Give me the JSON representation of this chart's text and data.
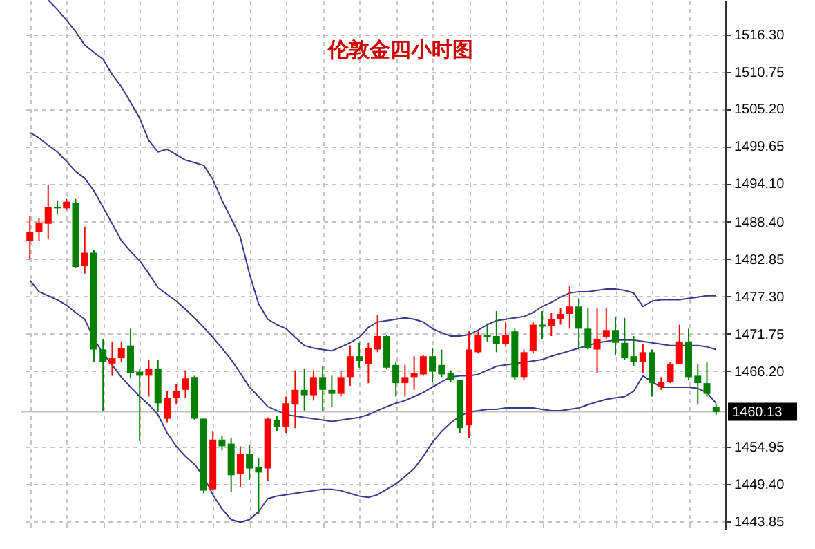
{
  "chart_data": {
    "type": "candlestick",
    "title": "伦敦金四小时图",
    "categories": [
      null,
      null,
      null,
      null,
      null,
      null,
      null,
      null,
      null,
      null,
      null,
      null,
      null,
      null,
      null,
      null,
      null,
      null,
      null,
      null,
      null,
      null,
      null,
      null,
      null,
      null,
      null,
      null,
      null,
      null,
      null,
      null,
      null,
      null,
      null,
      null,
      null,
      null,
      null,
      null,
      null,
      null,
      null,
      null,
      null,
      null,
      null,
      null,
      null,
      null,
      null,
      null,
      null,
      null,
      null,
      null,
      null,
      null,
      null,
      null,
      null,
      null,
      null,
      null,
      null,
      null,
      null,
      null,
      null,
      null,
      null,
      null,
      null,
      null,
      null,
      null
    ],
    "ohlc": [
      [
        1485.6,
        1489.3,
        1482.8,
        1486.9
      ],
      [
        1486.9,
        1488.9,
        1485.6,
        1488.3
      ],
      [
        1488.1,
        1493.9,
        1485.8,
        1490.6
      ],
      [
        1490.6,
        1491.6,
        1489.6,
        1490.4
      ],
      [
        1490.4,
        1491.8,
        1490.2,
        1491.4
      ],
      [
        1491.2,
        1491.8,
        1481.5,
        1481.7
      ],
      [
        1481.9,
        1487.7,
        1480.7,
        1483.8
      ],
      [
        1483.8,
        1484.2,
        1467.5,
        1469.4
      ],
      [
        1469.4,
        1471.0,
        1460.3,
        1467.5
      ],
      [
        1467.3,
        1470.6,
        1465.5,
        1468.1
      ],
      [
        1468.1,
        1470.6,
        1467.5,
        1469.6
      ],
      [
        1470.0,
        1472.5,
        1465.1,
        1465.9
      ],
      [
        1466.1,
        1466.5,
        1455.8,
        1465.5
      ],
      [
        1465.5,
        1467.9,
        1462.4,
        1466.5
      ],
      [
        1466.5,
        1467.9,
        1460.1,
        1461.4
      ],
      [
        1459.1,
        1463.2,
        1458.5,
        1462.2
      ],
      [
        1462.2,
        1464.2,
        1461.2,
        1463.2
      ],
      [
        1463.4,
        1466.3,
        1462.2,
        1465.1
      ],
      [
        1465.3,
        1465.5,
        1458.9,
        1459.1
      ],
      [
        1459.1,
        1459.1,
        1448.0,
        1448.4
      ],
      [
        1448.6,
        1457.2,
        1448.4,
        1456.0
      ],
      [
        1456.0,
        1456.6,
        1454.4,
        1455.0
      ],
      [
        1455.4,
        1456.2,
        1448.2,
        1450.7
      ],
      [
        1450.9,
        1455.0,
        1449.0,
        1453.9
      ],
      [
        1453.9,
        1455.2,
        1450.0,
        1451.7
      ],
      [
        1451.9,
        1453.3,
        1444.9,
        1451.1
      ],
      [
        1451.7,
        1459.3,
        1449.8,
        1459.1
      ],
      [
        1458.9,
        1459.5,
        1457.2,
        1457.9
      ],
      [
        1457.9,
        1462.4,
        1457.0,
        1461.4
      ],
      [
        1461.2,
        1466.3,
        1457.7,
        1463.4
      ],
      [
        1463.4,
        1466.5,
        1460.3,
        1462.6
      ],
      [
        1462.6,
        1466.3,
        1461.8,
        1465.3
      ],
      [
        1465.3,
        1466.9,
        1460.3,
        1463.4
      ],
      [
        1463.4,
        1465.5,
        1460.9,
        1462.8
      ],
      [
        1462.8,
        1466.3,
        1462.4,
        1465.3
      ],
      [
        1465.3,
        1470.0,
        1464.0,
        1468.4
      ],
      [
        1468.4,
        1470.4,
        1466.7,
        1467.7
      ],
      [
        1467.3,
        1470.4,
        1464.4,
        1469.6
      ],
      [
        1469.4,
        1474.5,
        1469.0,
        1471.4
      ],
      [
        1471.4,
        1471.6,
        1466.5,
        1466.7
      ],
      [
        1467.1,
        1467.5,
        1462.4,
        1464.4
      ],
      [
        1464.4,
        1467.1,
        1462.4,
        1465.3
      ],
      [
        1465.3,
        1468.4,
        1463.4,
        1465.9
      ],
      [
        1465.7,
        1468.6,
        1465.5,
        1468.4
      ],
      [
        1468.4,
        1469.6,
        1464.6,
        1466.1
      ],
      [
        1467.1,
        1469.4,
        1465.3,
        1465.7
      ],
      [
        1465.9,
        1466.3,
        1464.6,
        1464.9
      ],
      [
        1464.9,
        1464.9,
        1457.0,
        1457.7
      ],
      [
        1458.1,
        1472.1,
        1456.2,
        1469.4
      ],
      [
        1469.0,
        1472.1,
        1468.8,
        1471.6
      ],
      [
        1471.6,
        1473.3,
        1470.6,
        1471.3
      ],
      [
        1471.4,
        1475.1,
        1469.0,
        1470.2
      ],
      [
        1470.2,
        1473.5,
        1469.8,
        1471.6
      ],
      [
        1472.1,
        1472.5,
        1464.9,
        1465.3
      ],
      [
        1465.3,
        1469.4,
        1464.9,
        1469.0
      ],
      [
        1469.2,
        1473.5,
        1468.8,
        1473.1
      ],
      [
        1473.1,
        1475.1,
        1471.0,
        1472.8
      ],
      [
        1472.9,
        1474.9,
        1471.4,
        1473.9
      ],
      [
        1473.9,
        1475.6,
        1473.1,
        1474.7
      ],
      [
        1474.7,
        1478.8,
        1472.5,
        1475.8
      ],
      [
        1475.8,
        1477.0,
        1469.4,
        1472.5
      ],
      [
        1472.5,
        1475.6,
        1469.4,
        1469.6
      ],
      [
        1469.4,
        1475.6,
        1465.9,
        1471.0
      ],
      [
        1471.2,
        1475.6,
        1471.0,
        1472.3
      ],
      [
        1472.3,
        1474.3,
        1468.6,
        1470.4
      ],
      [
        1470.4,
        1474.1,
        1467.9,
        1468.1
      ],
      [
        1468.4,
        1471.4,
        1466.9,
        1467.5
      ],
      [
        1467.5,
        1470.2,
        1465.9,
        1469.0
      ],
      [
        1469.0,
        1469.4,
        1462.4,
        1464.4
      ],
      [
        1463.8,
        1465.3,
        1463.4,
        1464.6
      ],
      [
        1464.6,
        1467.5,
        1464.4,
        1467.3
      ],
      [
        1467.3,
        1473.1,
        1467.3,
        1470.6
      ],
      [
        1470.6,
        1472.5,
        1464.9,
        1465.3
      ],
      [
        1465.5,
        1467.3,
        1461.2,
        1464.4
      ],
      [
        1464.4,
        1467.5,
        1462.4,
        1462.8
      ],
      [
        1460.9,
        1461.2,
        1459.7,
        1460.1
      ]
    ],
    "colors": [
      "#ff0000",
      "#ff0000",
      "#ff0000",
      "#008000",
      "#ff0000",
      "#008000",
      "#ff0000",
      "#008000",
      "#008000",
      "#ff0000",
      "#ff0000",
      "#008000",
      "#008000",
      "#ff0000",
      "#008000",
      "#ff0000",
      "#ff0000",
      "#ff0000",
      "#008000",
      "#008000",
      "#ff0000",
      "#008000",
      "#008000",
      "#ff0000",
      "#008000",
      "#008000",
      "#ff0000",
      "#008000",
      "#ff0000",
      "#ff0000",
      "#008000",
      "#ff0000",
      "#008000",
      "#008000",
      "#ff0000",
      "#ff0000",
      "#008000",
      "#ff0000",
      "#ff0000",
      "#008000",
      "#008000",
      "#ff0000",
      "#ff0000",
      "#ff0000",
      "#008000",
      "#008000",
      "#008000",
      "#008000",
      "#ff0000",
      "#ff0000",
      "#008000",
      "#008000",
      "#ff0000",
      "#008000",
      "#ff0000",
      "#ff0000",
      "#008000",
      "#ff0000",
      "#ff0000",
      "#ff0000",
      "#008000",
      "#008000",
      "#ff0000",
      "#ff0000",
      "#008000",
      "#008000",
      "#008000",
      "#ff0000",
      "#008000",
      "#ff0000",
      "#ff0000",
      "#ff0000",
      "#008000",
      "#008000",
      "#008000",
      "#008000"
    ],
    "series": [
      {
        "type": "line",
        "color": "#3a3a8c",
        "values": [
          null,
          null,
          1521.4,
          1520.0,
          1518.4,
          1516.7,
          1514.7,
          1513.6,
          1512.6,
          1510.3,
          1508.5,
          1506.2,
          1503.8,
          1500.5,
          1498.8,
          1499.2,
          1498.4,
          1497.6,
          1497.2,
          1496.8,
          1494.7,
          1491.6,
          1488.9,
          1486.1,
          1480.7,
          1476.2,
          1473.9,
          1473.1,
          1472.5,
          1471.2,
          1470.0,
          1469.6,
          1469.4,
          1469.2,
          1469.8,
          1470.4,
          1471.2,
          1472.7,
          1473.5,
          1473.7,
          1473.9,
          1474.1,
          1473.9,
          1473.5,
          1472.5,
          1471.9,
          1471.4,
          1471.4,
          1471.6,
          1472.3,
          1473.1,
          1473.7,
          1473.9,
          1474.1,
          1474.3,
          1474.9,
          1475.8,
          1476.4,
          1477.2,
          1477.8,
          1478.0,
          1478.0,
          1478.2,
          1478.4,
          1478.4,
          1478.2,
          1477.8,
          1475.8,
          1476.6,
          1476.8,
          1476.8,
          1476.8,
          1477.0,
          1477.2,
          1477.4,
          1477.4
        ]
      },
      {
        "type": "line",
        "color": "#3a3a8c",
        "values": [
          1501.7,
          1500.9,
          1499.8,
          1498.8,
          1497.4,
          1495.9,
          1494.9,
          1493.0,
          1490.6,
          1488.1,
          1485.6,
          1484.0,
          1482.6,
          1480.7,
          1478.6,
          1477.6,
          1476.6,
          1475.4,
          1474.1,
          1472.7,
          1471.2,
          1469.6,
          1467.9,
          1465.9,
          1463.8,
          1462.4,
          1460.9,
          1460.3,
          1459.7,
          1459.5,
          1459.3,
          1459.1,
          1458.9,
          1458.7,
          1458.9,
          1459.1,
          1459.3,
          1459.7,
          1460.3,
          1460.9,
          1461.4,
          1461.8,
          1462.4,
          1463.0,
          1463.8,
          1464.6,
          1465.3,
          1465.5,
          1465.5,
          1465.7,
          1466.3,
          1466.9,
          1467.1,
          1467.3,
          1467.5,
          1467.7,
          1467.9,
          1468.4,
          1468.8,
          1469.2,
          1469.6,
          1470.0,
          1470.4,
          1470.6,
          1470.8,
          1470.8,
          1470.8,
          1470.6,
          1470.4,
          1470.2,
          1470.0,
          1470.0,
          1470.0,
          1470.0,
          1469.8,
          1469.4
        ]
      },
      {
        "type": "line",
        "color": "#3a3a8c",
        "values": [
          1479.7,
          1478.0,
          1477.4,
          1476.8,
          1476.0,
          1474.9,
          1473.9,
          1471.0,
          1468.8,
          1467.1,
          1465.3,
          1463.8,
          1462.4,
          1461.2,
          1459.7,
          1457.0,
          1455.0,
          1453.5,
          1452.3,
          1450.5,
          1447.8,
          1445.7,
          1444.1,
          1443.7,
          1444.1,
          1445.3,
          1447.2,
          1447.6,
          1447.8,
          1448.0,
          1448.2,
          1448.4,
          1448.6,
          1448.6,
          1448.4,
          1448.0,
          1447.6,
          1447.4,
          1447.8,
          1448.6,
          1449.4,
          1450.5,
          1451.7,
          1453.5,
          1455.6,
          1457.2,
          1458.5,
          1459.5,
          1460.1,
          1460.3,
          1460.5,
          1460.5,
          1460.7,
          1460.7,
          1460.7,
          1460.7,
          1460.5,
          1460.3,
          1460.3,
          1460.5,
          1460.7,
          1461.2,
          1461.6,
          1462.0,
          1462.2,
          1462.4,
          1463.2,
          1465.5,
          1464.6,
          1463.8,
          1463.8,
          1463.8,
          1463.8,
          1463.6,
          1463.0,
          1461.4
        ]
      }
    ],
    "ylim": [
      1442.6,
      1521.4
    ],
    "yticks": [
      {
        "value": 1443.85,
        "label": "1443.85"
      },
      {
        "value": 1449.4,
        "label": "1449.40"
      },
      {
        "value": 1454.95,
        "label": "1454.95"
      },
      {
        "value": 1466.2,
        "label": "1466.20"
      },
      {
        "value": 1471.75,
        "label": "1471.75"
      },
      {
        "value": 1477.3,
        "label": "1477.30"
      },
      {
        "value": 1482.85,
        "label": "1482.85"
      },
      {
        "value": 1488.4,
        "label": "1488.40"
      },
      {
        "value": 1494.1,
        "label": "1494.10"
      },
      {
        "value": 1499.65,
        "label": "1499.65"
      },
      {
        "value": 1505.2,
        "label": "1505.20"
      },
      {
        "value": 1510.75,
        "label": "1510.75"
      },
      {
        "value": 1516.3,
        "label": "1516.30"
      }
    ],
    "ref_lines": [
      {
        "axis": "y",
        "value": 1460.13,
        "label": "1460.13",
        "color": "#c0c0c0"
      }
    ],
    "grid": true,
    "tick_labels": "y"
  }
}
